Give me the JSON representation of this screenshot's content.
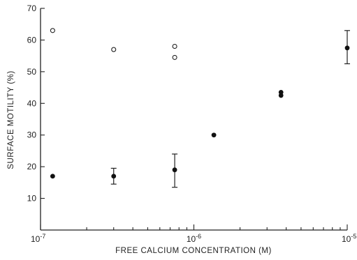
{
  "chart_data": {
    "type": "scatter",
    "title": "",
    "xlabel": "FREE CALCIUM CONCENTRATION (M)",
    "ylabel": "SURFACE MOTILITY (%)",
    "xscale": "log",
    "xlim": [
      1e-07,
      1e-05
    ],
    "ylim": [
      0,
      70
    ],
    "grid": false,
    "x_ticks": [
      {
        "value": 1e-07,
        "base": "10",
        "exp": "-7"
      },
      {
        "value": 1e-06,
        "base": "10",
        "exp": "-6"
      },
      {
        "value": 1e-05,
        "base": "10",
        "exp": "-5"
      }
    ],
    "y_ticks": [
      10,
      20,
      30,
      40,
      50,
      60,
      70
    ],
    "series": [
      {
        "marker": "filled-circle",
        "points": [
          {
            "x": 1.2e-07,
            "y": 17
          },
          {
            "x": 3e-07,
            "y": 17,
            "err": [
              14.5,
              19.5
            ]
          },
          {
            "x": 7.5e-07,
            "y": 19,
            "err": [
              13.5,
              24
            ]
          },
          {
            "x": 1.35e-06,
            "y": 30
          },
          {
            "x": 3.7e-06,
            "y": 42.5
          },
          {
            "x": 3.7e-06,
            "y": 43.5
          },
          {
            "x": 1e-05,
            "y": 57.5,
            "err": [
              52.5,
              63
            ]
          }
        ]
      },
      {
        "marker": "open-circle",
        "points": [
          {
            "x": 1.2e-07,
            "y": 63
          },
          {
            "x": 3e-07,
            "y": 57
          },
          {
            "x": 7.5e-07,
            "y": 54.5
          },
          {
            "x": 7.5e-07,
            "y": 58
          }
        ]
      }
    ]
  }
}
